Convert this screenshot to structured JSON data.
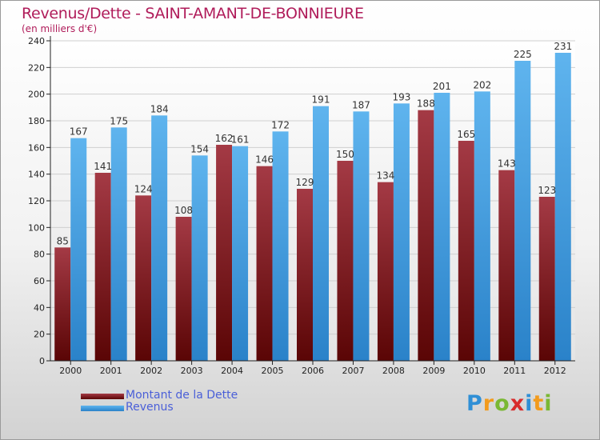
{
  "chart_data": {
    "type": "bar",
    "title": "Revenus/Dette - SAINT-AMANT-DE-BONNIEURE",
    "subtitle": "(en milliers d'€)",
    "categories": [
      "2000",
      "2001",
      "2002",
      "2003",
      "2004",
      "2005",
      "2006",
      "2007",
      "2008",
      "2009",
      "2010",
      "2011",
      "2012"
    ],
    "series": [
      {
        "name": "Montant de la Dette",
        "color": "#8b1f2a",
        "values": [
          85,
          141,
          124,
          108,
          162,
          146,
          129,
          150,
          134,
          188,
          165,
          143,
          123
        ]
      },
      {
        "name": "Revenus",
        "color": "#4aa3e3",
        "values": [
          167,
          175,
          184,
          154,
          161,
          172,
          191,
          187,
          193,
          201,
          202,
          225,
          231
        ]
      }
    ],
    "ylim": [
      0,
      240
    ],
    "yticks": [
      0,
      20,
      40,
      60,
      80,
      100,
      120,
      140,
      160,
      180,
      200,
      220,
      240
    ],
    "grid": true,
    "legend_position": "bottom-left"
  },
  "brand": {
    "letters": [
      "P",
      "r",
      "o",
      "x",
      "i",
      "t",
      "i"
    ],
    "colors": [
      "#2f8fd6",
      "#f29b1d",
      "#7ab834",
      "#d82b2b",
      "#2f8fd6",
      "#f29b1d",
      "#7ab834"
    ]
  }
}
